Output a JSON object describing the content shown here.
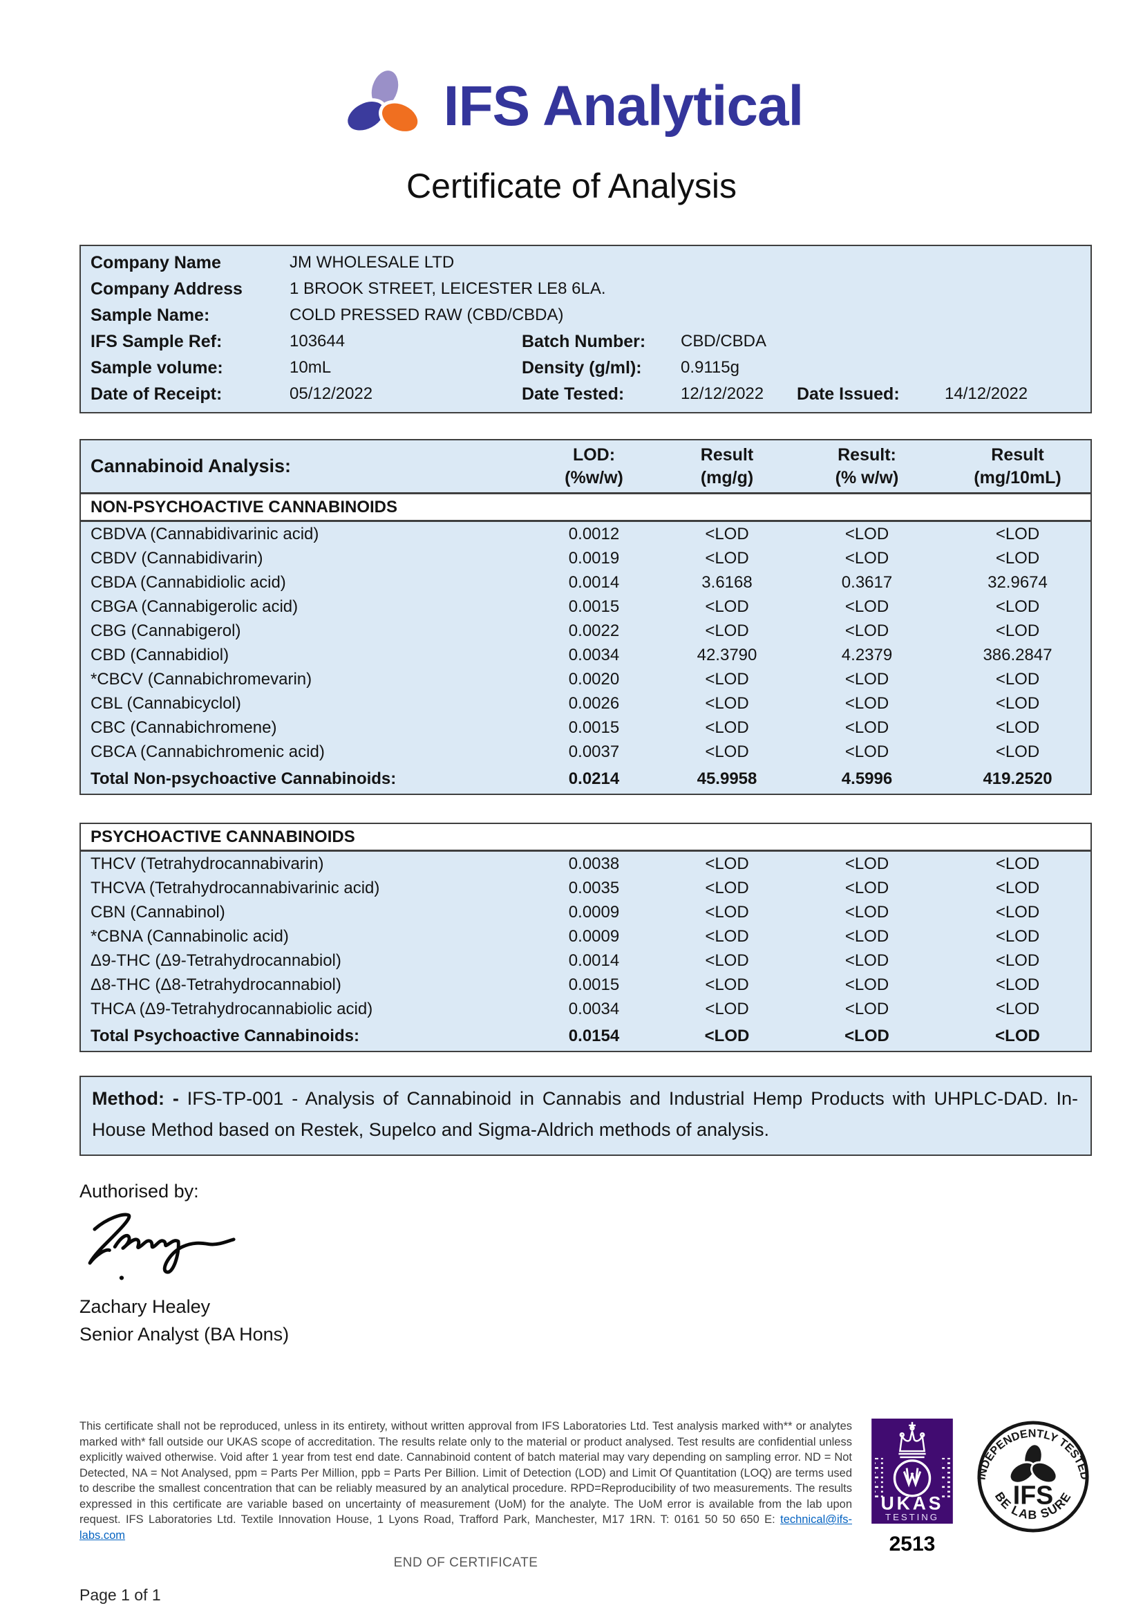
{
  "brand": {
    "name": "IFS Analytical",
    "colors": {
      "text": "#34359b",
      "leaf_purple": "#9a90c8",
      "leaf_indigo": "#3b3b9d",
      "leaf_orange": "#f06f20"
    }
  },
  "title": "Certificate of Analysis",
  "info": {
    "company_name_label": "Company Name",
    "company_name": "JM WHOLESALE LTD",
    "company_address_label": "Company Address",
    "company_address": "1 BROOK STREET, LEICESTER LE8 6LA.",
    "sample_name_label": "Sample Name:",
    "sample_name": "COLD PRESSED RAW (CBD/CBDA)",
    "ifs_sample_ref_label": "IFS Sample Ref:",
    "ifs_sample_ref": "103644",
    "batch_number_label": "Batch Number:",
    "batch_number": "CBD/CBDA",
    "sample_volume_label": "Sample volume:",
    "sample_volume": "10mL",
    "density_label": "Density (g/ml):",
    "density": "0.9115g",
    "date_receipt_label": "Date of Receipt:",
    "date_receipt": "05/12/2022",
    "date_tested_label": "Date Tested:",
    "date_tested": "12/12/2022",
    "date_issued_label": "Date Issued:",
    "date_issued": "14/12/2022"
  },
  "analysis": {
    "header": {
      "col0": "Cannabinoid Analysis:",
      "col1a": "LOD:",
      "col1b": "(%w/w)",
      "col2a": "Result",
      "col2b": "(mg/g)",
      "col3a": "Result:",
      "col3b": "(% w/w)",
      "col4a": "Result",
      "col4b": "(mg/10mL)"
    },
    "sections": [
      {
        "title": "NON-PSYCHOACTIVE CANNABINOIDS",
        "rows": [
          [
            "CBDVA (Cannabidivarinic acid)",
            "0.0012",
            "<LOD",
            "<LOD",
            "<LOD"
          ],
          [
            "CBDV (Cannabidivarin)",
            "0.0019",
            "<LOD",
            "<LOD",
            "<LOD"
          ],
          [
            "CBDA (Cannabidiolic acid)",
            "0.0014",
            "3.6168",
            "0.3617",
            "32.9674"
          ],
          [
            "CBGA (Cannabigerolic acid)",
            "0.0015",
            "<LOD",
            "<LOD",
            "<LOD"
          ],
          [
            "CBG (Cannabigerol)",
            "0.0022",
            "<LOD",
            "<LOD",
            "<LOD"
          ],
          [
            "CBD (Cannabidiol)",
            "0.0034",
            "42.3790",
            "4.2379",
            "386.2847"
          ],
          [
            "*CBCV (Cannabichromevarin)",
            "0.0020",
            "<LOD",
            "<LOD",
            "<LOD"
          ],
          [
            "CBL (Cannabicyclol)",
            "0.0026",
            "<LOD",
            "<LOD",
            "<LOD"
          ],
          [
            "CBC (Cannabichromene)",
            "0.0015",
            "<LOD",
            "<LOD",
            "<LOD"
          ],
          [
            "CBCA (Cannabichromenic acid)",
            "0.0037",
            "<LOD",
            "<LOD",
            "<LOD"
          ]
        ],
        "total": [
          "Total Non-psychoactive Cannabinoids:",
          "0.0214",
          "45.9958",
          "4.5996",
          "419.2520"
        ]
      },
      {
        "title": "PSYCHOACTIVE CANNABINOIDS",
        "rows": [
          [
            "THCV (Tetrahydrocannabivarin)",
            "0.0038",
            "<LOD",
            "<LOD",
            "<LOD"
          ],
          [
            "THCVA (Tetrahydrocannabivarinic acid)",
            "0.0035",
            "<LOD",
            "<LOD",
            "<LOD"
          ],
          [
            "CBN (Cannabinol)",
            "0.0009",
            "<LOD",
            "<LOD",
            "<LOD"
          ],
          [
            "*CBNA (Cannabinolic acid)",
            "0.0009",
            "<LOD",
            "<LOD",
            "<LOD"
          ],
          [
            "Δ9-THC (Δ9-Tetrahydrocannabiol)",
            "0.0014",
            "<LOD",
            "<LOD",
            "<LOD"
          ],
          [
            "Δ8-THC (Δ8-Tetrahydrocannabiol)",
            "0.0015",
            "<LOD",
            "<LOD",
            "<LOD"
          ],
          [
            "THCA (Δ9-Tetrahydrocannabiolic acid)",
            "0.0034",
            "<LOD",
            "<LOD",
            "<LOD"
          ]
        ],
        "total": [
          "Total Psychoactive Cannabinoids:",
          "0.0154",
          "<LOD",
          "<LOD",
          "<LOD"
        ]
      }
    ]
  },
  "method": {
    "label": "Method: -",
    "text": "IFS-TP-001 - Analysis of Cannabinoid in Cannabis and Industrial Hemp Products with UHPLC-DAD. In-House Method based on Restek, Supelco and Sigma-Aldrich methods of analysis."
  },
  "authorised": {
    "label": "Authorised by:",
    "name": "Zachary Healey",
    "role": "Senior Analyst (BA Hons)"
  },
  "footer": {
    "disclaimer": "This certificate shall not be reproduced, unless in its entirety, without written approval from IFS Laboratories Ltd. Test analysis marked with** or analytes marked with* fall outside our UKAS scope of accreditation.  The results relate only to the material or product analysed. Test results are confidential unless explicitly waived otherwise. Void after 1 year from test end date. Cannabinoid content of batch material may vary depending on sampling error. ND = Not Detected, NA = Not Analysed, ppm = Parts Per Million, ppb = Parts Per Billion. Limit of Detection (LOD) and Limit Of Quantitation (LOQ) are terms used to describe the smallest concentration that can be reliably measured by an analytical procedure. RPD=Reproducibility of two measurements. The results expressed in this certificate are variable based on uncertainty of measurement (UoM) for the analyte. The UoM error is available from the lab upon request. IFS Laboratories Ltd. Textile Innovation House, 1 Lyons Road, Trafford Park, Manchester, M17 1RN. T: 0161 50 50 650 E: ",
    "email": "technical@ifs-labs.com",
    "end_text": "END OF CERTIFICATE",
    "page": "Page 1 of 1",
    "ukas": {
      "name": "UKAS",
      "sub": "TESTING",
      "number": "2513",
      "color": "#410c71"
    },
    "stamp": {
      "top": "INDEPENDENTLY TESTED",
      "bottom": "BE LAB SURE",
      "center": "IFS"
    }
  }
}
